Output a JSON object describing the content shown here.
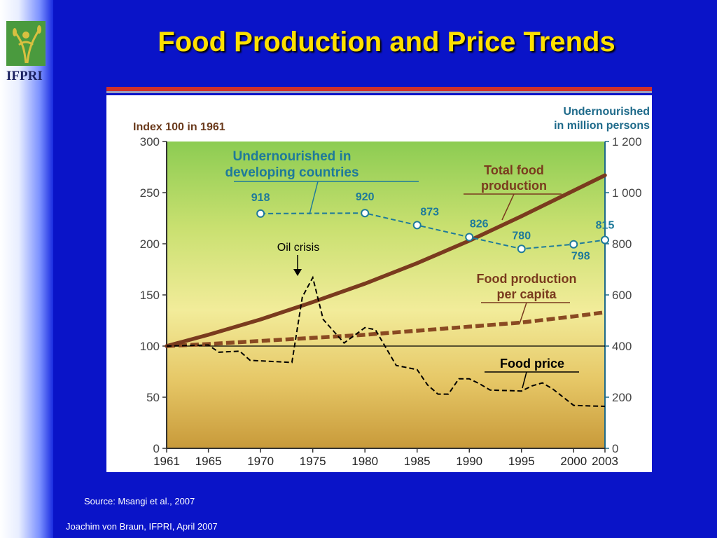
{
  "slide": {
    "title": "Food Production and Price Trends",
    "logo_text": "IFPRI",
    "source": "Source: Msangi et al., 2007",
    "author": "Joachim von Braun, IFPRI, April 2007"
  },
  "colors": {
    "background": "#0a14c8",
    "title": "#ffe000",
    "total_food": "#7a3b1e",
    "per_capita": "#8a4a22",
    "undernourished": "#1e7a9a",
    "price": "#000000"
  },
  "chart_data": {
    "type": "line",
    "left_axis_title": "Index 100 in 1961",
    "right_axis_title_line1": "Undernourished",
    "right_axis_title_line2": "in million persons",
    "ylim": [
      0,
      300
    ],
    "y2lim": [
      0,
      1200
    ],
    "xlim": [
      1961,
      2003
    ],
    "x_ticks": [
      1961,
      1965,
      1970,
      1975,
      1980,
      1985,
      1990,
      1995,
      2000,
      2003
    ],
    "y_ticks": [
      0,
      50,
      100,
      150,
      200,
      250,
      300
    ],
    "y2_tick_labels": [
      "0",
      "200",
      "400",
      "600",
      "800",
      "1 000",
      "1 200"
    ],
    "y2_ticks": [
      0,
      200,
      400,
      600,
      800,
      1000,
      1200
    ],
    "grid": false,
    "series": [
      {
        "name": "Total food production",
        "label_line1": "Total food",
        "label_line2": "production",
        "axis": "left",
        "x": [
          1961,
          1965,
          1970,
          1975,
          1980,
          1985,
          1990,
          1995,
          2000,
          2003
        ],
        "y": [
          100,
          111,
          126,
          143,
          161,
          181,
          203,
          227,
          252,
          267
        ]
      },
      {
        "name": "Food production per capita",
        "label_line1": "Food production",
        "label_line2": "per capita",
        "axis": "left",
        "x": [
          1961,
          1965,
          1970,
          1975,
          1980,
          1985,
          1990,
          1995,
          2000,
          2003
        ],
        "y": [
          100,
          102,
          105,
          108,
          111,
          115,
          119,
          123,
          129,
          133
        ]
      },
      {
        "name": "Food price",
        "label_line1": "Food price",
        "axis": "left",
        "x": [
          1961,
          1965,
          1966,
          1968,
          1969,
          1973,
          1974,
          1975,
          1976,
          1978,
          1980,
          1981,
          1983,
          1985,
          1986,
          1987,
          1988,
          1989,
          1990,
          1991,
          1992,
          1995,
          1996,
          1997,
          1998,
          2000,
          2003
        ],
        "y": [
          100,
          101,
          94,
          95,
          86,
          84,
          148,
          167,
          126,
          103,
          118,
          116,
          81,
          77,
          62,
          53,
          53,
          68,
          68,
          63,
          57,
          56,
          61,
          64,
          58,
          42,
          41
        ]
      },
      {
        "name": "Undernourished in developing countries",
        "label_line1": "Undernourished in",
        "label_line2": "developing countries",
        "axis": "right",
        "x": [
          1970,
          1980,
          1985,
          1990,
          1995,
          2000,
          2003
        ],
        "y": [
          918,
          920,
          873,
          826,
          780,
          798,
          815
        ],
        "point_labels": [
          "918",
          "920",
          "873",
          "826",
          "780",
          "798",
          "815"
        ]
      }
    ],
    "annotations": {
      "oil_crisis": "Oil crisis"
    }
  }
}
